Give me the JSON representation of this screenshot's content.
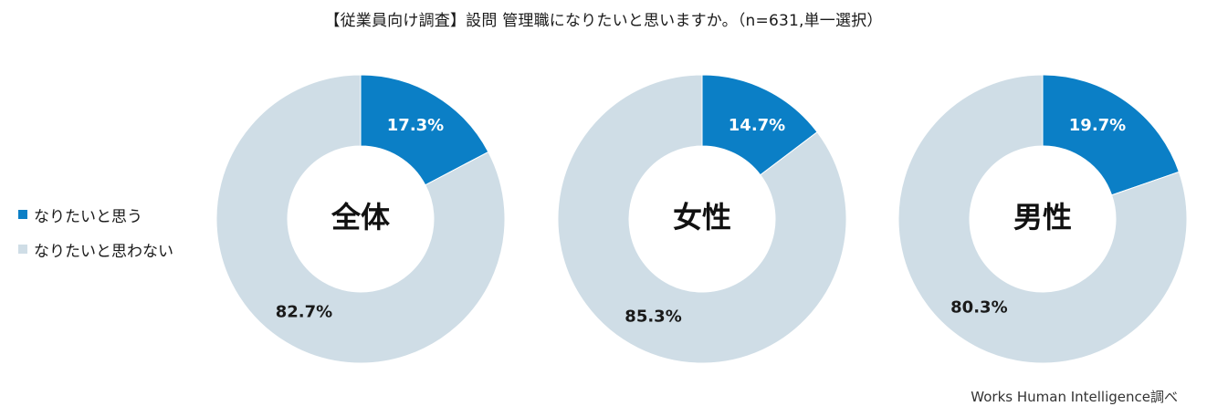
{
  "title": "【従業員向け調査】設問 管理職になりたいと思いますか。（n=631,単一選択）",
  "source": "Works Human Intelligence調べ",
  "legend": [
    {
      "label": "なりたいと思う",
      "color": "#0b7fc6"
    },
    {
      "label": "なりたいと思わない",
      "color": "#cfdde6"
    }
  ],
  "chart_data": [
    {
      "type": "pie",
      "donut": true,
      "center_label": "全体",
      "categories": [
        "なりたいと思う",
        "なりたいと思わない"
      ],
      "values": [
        17.3,
        82.7
      ],
      "labels": [
        "17.3%",
        "82.7%"
      ]
    },
    {
      "type": "pie",
      "donut": true,
      "center_label": "女性",
      "categories": [
        "なりたいと思う",
        "なりたいと思わない"
      ],
      "values": [
        14.7,
        85.3
      ],
      "labels": [
        "14.7%",
        "85.3%"
      ]
    },
    {
      "type": "pie",
      "donut": true,
      "center_label": "男性",
      "categories": [
        "なりたいと思う",
        "なりたいと思わない"
      ],
      "values": [
        19.7,
        80.3
      ],
      "labels": [
        "19.7%",
        "80.3%"
      ]
    }
  ]
}
